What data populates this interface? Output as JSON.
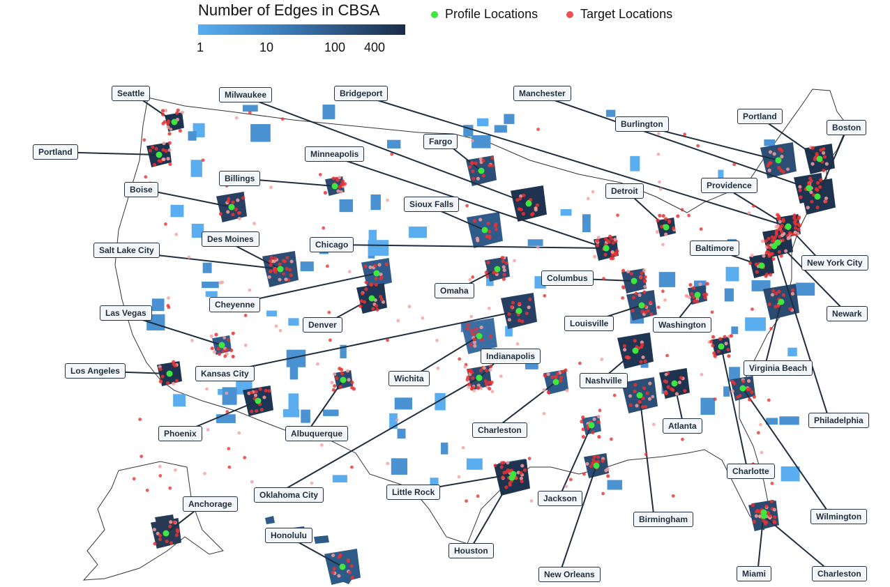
{
  "legend": {
    "title": "Number of Edges in CBSA",
    "ticks": [
      "1",
      "10",
      "100",
      "400"
    ],
    "points": [
      {
        "label": "Profile Locations",
        "color": "#3ee63e"
      },
      {
        "label": "Target Locations",
        "color": "#f05050"
      }
    ]
  },
  "colors": {
    "scale_low": "#5aaef0",
    "scale_high": "#1a2d48",
    "county_none": "#ffffff",
    "county_border": "#444444",
    "callout_line": "#1f2d3d"
  },
  "cities": [
    "Seattle",
    "Portland",
    "Boise",
    "Salt Lake City",
    "Las Vegas",
    "Los Angeles",
    "Phoenix",
    "Milwaukee",
    "Billings",
    "Des Moines",
    "Cheyenne",
    "Kansas City",
    "Albuquerque",
    "Oklahoma City",
    "Anchorage",
    "Honolulu",
    "Bridgeport",
    "Minneapolis",
    "Fargo",
    "Sioux Falls",
    "Chicago",
    "Omaha",
    "Denver",
    "Wichita",
    "Indianapolis",
    "Charleston",
    "Little Rock",
    "Houston",
    "Jackson",
    "New Orleans",
    "Manchester",
    "Burlington",
    "Detroit",
    "Columbus",
    "Louisville",
    "Nashville",
    "Washington",
    "Baltimore",
    "Atlanta",
    "Birmingham",
    "Charlotte",
    "Miami",
    "Portland",
    "Boston",
    "Providence",
    "New York City",
    "Newark",
    "Virginia Beach",
    "Philadelphia",
    "Wilmington",
    "Charleston"
  ]
}
